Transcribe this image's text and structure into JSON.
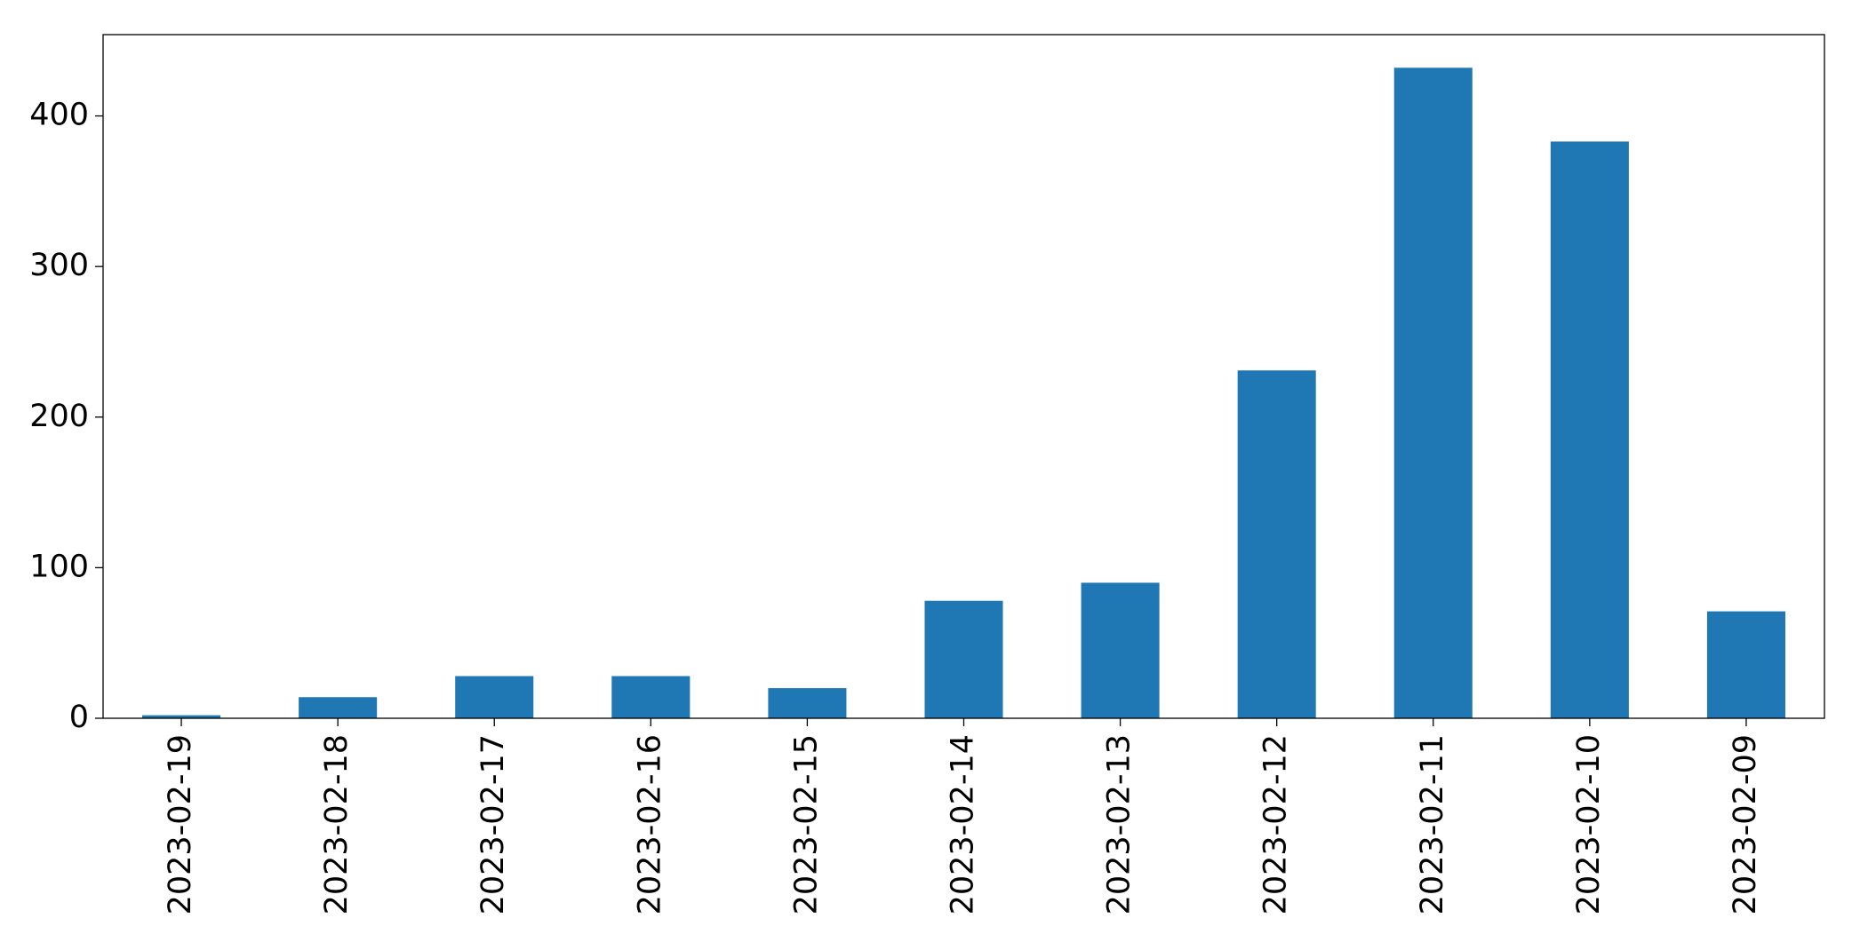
{
  "chart_data": {
    "type": "bar",
    "categories": [
      "2023-02-19",
      "2023-02-18",
      "2023-02-17",
      "2023-02-16",
      "2023-02-15",
      "2023-02-14",
      "2023-02-13",
      "2023-02-12",
      "2023-02-11",
      "2023-02-10",
      "2023-02-09"
    ],
    "values": [
      2,
      14,
      28,
      28,
      20,
      78,
      90,
      231,
      432,
      383,
      71
    ],
    "color": "#1f77b4",
    "ylim": [
      0,
      454
    ],
    "yticks": [
      0,
      100,
      200,
      300,
      400
    ],
    "grid": false
  }
}
